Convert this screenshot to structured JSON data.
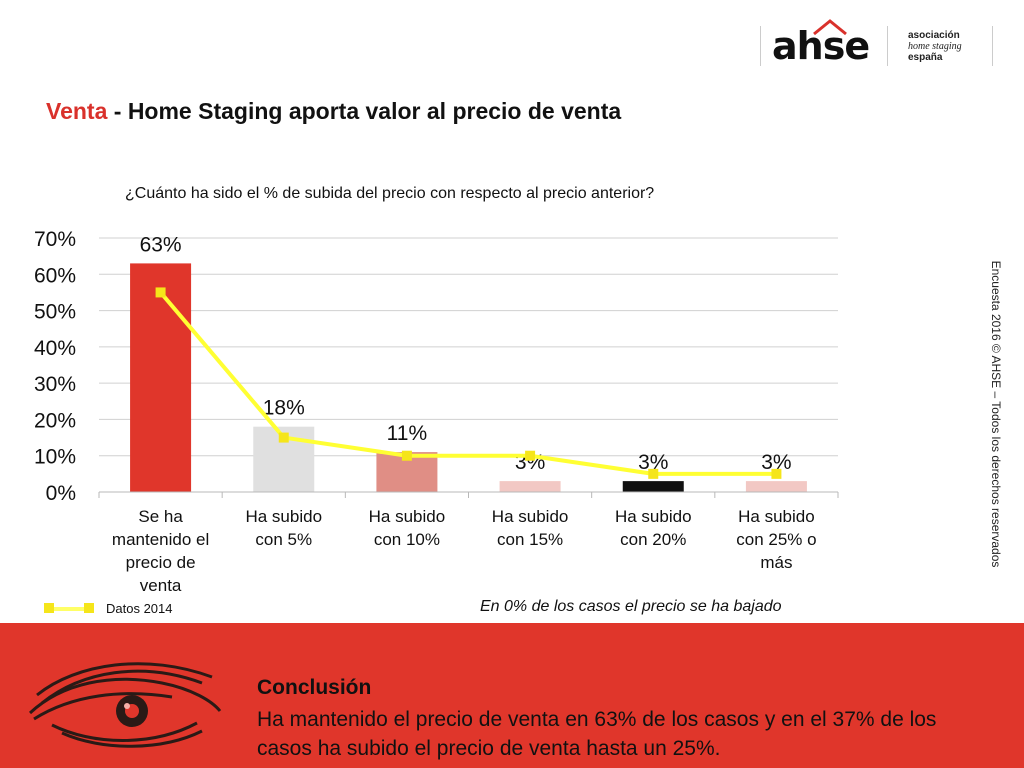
{
  "header": {
    "logo": {
      "word": "ahse",
      "line1": "asociación",
      "line2": "home staging",
      "line3": "españa"
    },
    "title_accent": "Venta",
    "title_rest": " - Home Staging aporta valor al precio de venta"
  },
  "question": "¿Cuánto ha sido el % de subida del precio con respecto al precio anterior?",
  "copyright": "Encuesta 2016 © AHSE – Todos los derechos reservados",
  "legend": {
    "series_2014": "Datos 2014"
  },
  "note": "En 0% de los casos el precio se ha bajado",
  "conclusion": {
    "title": "Conclusión",
    "text": "Ha mantenido el precio de venta en 63% de los casos y en el 37%  de los casos ha subido el precio de venta hasta un 25%."
  },
  "colors": {
    "accent_red": "#d9312b",
    "band_red": "#e0362b",
    "bar_colors": [
      "#e0362b",
      "#e0e0e0",
      "#e08e85",
      "#f2c8c4",
      "#111111",
      "#f2c8c4"
    ],
    "line_2014": "#ffff33",
    "marker_2014": "#f5e51a"
  },
  "chart_data": {
    "type": "bar",
    "categories": [
      [
        "Se ha",
        "mantenido el",
        "precio de",
        "venta"
      ],
      [
        "Ha subido",
        "con 5%"
      ],
      [
        "Ha subido",
        "con 10%"
      ],
      [
        "Ha subido",
        "con 15%"
      ],
      [
        "Ha subido",
        "con 20%"
      ],
      [
        "Ha subido",
        "con 25% o",
        "más"
      ]
    ],
    "series": [
      {
        "name": "",
        "values": [
          63,
          18,
          11,
          3,
          3,
          3
        ],
        "data_labels": [
          "63%",
          "18%",
          "11%",
          "3%",
          "3%",
          "3%"
        ]
      },
      {
        "name": "Datos 2014",
        "type": "line",
        "values": [
          55,
          15,
          10,
          10,
          5,
          5
        ]
      }
    ],
    "ylim": [
      0,
      70
    ],
    "yticks": [
      0,
      10,
      20,
      30,
      40,
      50,
      60,
      70
    ],
    "ytick_labels": [
      "0%",
      "10%",
      "20%",
      "30%",
      "40%",
      "50%",
      "60%",
      "70%"
    ],
    "grid": true,
    "legend_position": "bottom-left"
  }
}
